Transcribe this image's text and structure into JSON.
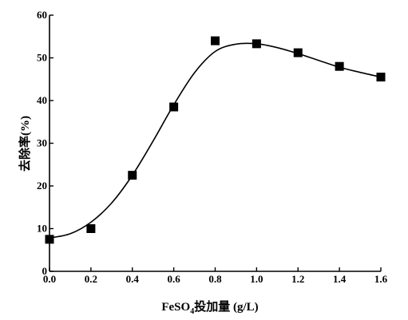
{
  "chart_data": {
    "type": "scatter",
    "title": "",
    "xlabel_prefix": "FeSO",
    "xlabel_subscript": "4",
    "xlabel_suffix": "投加量 (g/L)",
    "ylabel": "去除率(%)",
    "xlim": [
      0.0,
      1.6
    ],
    "ylim": [
      0,
      60
    ],
    "x_ticks": [
      "0.0",
      "0.2",
      "0.4",
      "0.6",
      "0.8",
      "1.0",
      "1.2",
      "1.4",
      "1.6"
    ],
    "y_ticks": [
      "0",
      "10",
      "20",
      "30",
      "40",
      "50",
      "60"
    ],
    "grid": false,
    "legend": false,
    "marker": "square",
    "series": [
      {
        "points": [
          {
            "x": 0.0,
            "y": 7.5
          },
          {
            "x": 0.2,
            "y": 10.0
          },
          {
            "x": 0.4,
            "y": 22.5
          },
          {
            "x": 0.6,
            "y": 38.5
          },
          {
            "x": 0.8,
            "y": 54.0
          },
          {
            "x": 1.0,
            "y": 53.3
          },
          {
            "x": 1.2,
            "y": 51.2
          },
          {
            "x": 1.4,
            "y": 48.0
          },
          {
            "x": 1.6,
            "y": 45.5
          }
        ]
      }
    ],
    "fit_curve": [
      {
        "x": 0.0,
        "y": 7.8
      },
      {
        "x": 0.1,
        "y": 8.8
      },
      {
        "x": 0.2,
        "y": 11.5
      },
      {
        "x": 0.3,
        "y": 16.0
      },
      {
        "x": 0.4,
        "y": 22.5
      },
      {
        "x": 0.5,
        "y": 30.5
      },
      {
        "x": 0.6,
        "y": 39.0
      },
      {
        "x": 0.7,
        "y": 46.5
      },
      {
        "x": 0.8,
        "y": 51.5
      },
      {
        "x": 0.9,
        "y": 53.2
      },
      {
        "x": 1.0,
        "y": 53.3
      },
      {
        "x": 1.1,
        "y": 52.4
      },
      {
        "x": 1.2,
        "y": 51.0
      },
      {
        "x": 1.3,
        "y": 49.4
      },
      {
        "x": 1.4,
        "y": 47.8
      },
      {
        "x": 1.5,
        "y": 46.6
      },
      {
        "x": 1.6,
        "y": 45.5
      }
    ],
    "colors": {
      "axis": "#000000",
      "marker": "#000000",
      "curve": "#000000"
    }
  }
}
